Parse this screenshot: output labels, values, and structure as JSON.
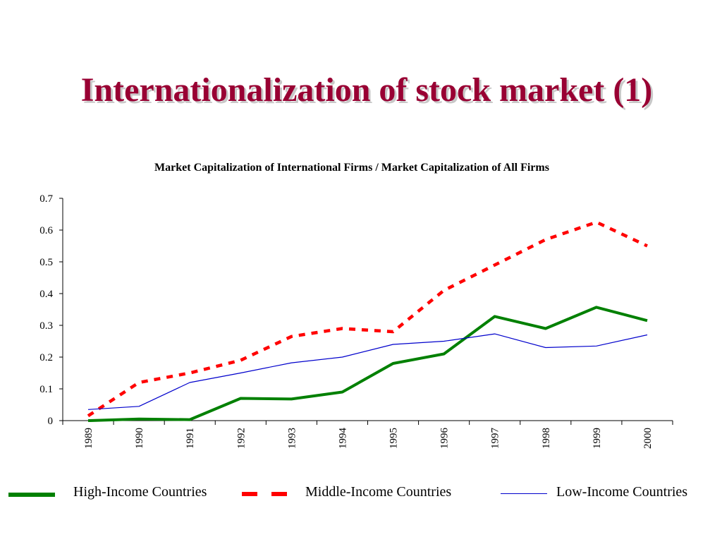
{
  "slide": {
    "title": "Internationalization of stock market (1)"
  },
  "colors": {
    "title": "#990033",
    "high": "#008000",
    "middle": "#ff0000",
    "low": "#0000cc"
  },
  "chart_data": {
    "type": "line",
    "title": "Market Capitalization of International Firms / Market Capitalization of All Firms",
    "xlabel": "",
    "ylabel": "",
    "x": [
      "1989",
      "1990",
      "1991",
      "1992",
      "1993",
      "1994",
      "1995",
      "1996",
      "1997",
      "1998",
      "1999",
      "2000"
    ],
    "ylim": [
      0,
      0.7
    ],
    "yticks": [
      "0",
      "0.1",
      "0.2",
      "0.3",
      "0.4",
      "0.5",
      "0.6",
      "0.7"
    ],
    "grid": false,
    "legend_position": "bottom",
    "series": [
      {
        "name": "High-Income Countries",
        "style": "solid-thick",
        "color": "#008000",
        "values": [
          0.0,
          0.005,
          0.003,
          0.07,
          0.068,
          0.09,
          0.18,
          0.21,
          0.328,
          0.29,
          0.357,
          0.315
        ]
      },
      {
        "name": "Middle-Income Countries",
        "style": "dashed-thick",
        "color": "#ff0000",
        "values": [
          0.015,
          0.12,
          0.15,
          0.19,
          0.265,
          0.29,
          0.28,
          0.41,
          0.49,
          0.57,
          0.625,
          0.55
        ]
      },
      {
        "name": "Low-Income Countries",
        "style": "solid-thin",
        "color": "#0000cc",
        "values": [
          0.035,
          0.045,
          0.12,
          0.15,
          0.182,
          0.2,
          0.24,
          0.25,
          0.273,
          0.23,
          0.235,
          0.27
        ]
      }
    ]
  }
}
